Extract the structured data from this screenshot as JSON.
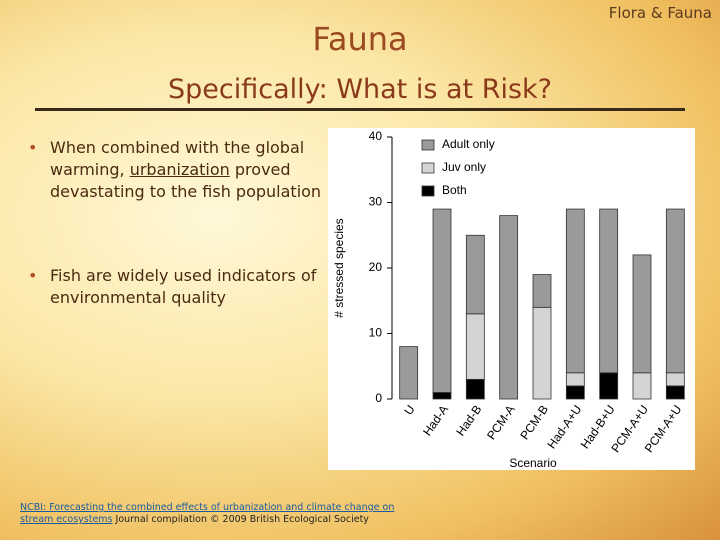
{
  "header": {
    "corner": "Flora & Fauna",
    "title": "Fauna",
    "subtitle": "Specifically: What is at Risk?"
  },
  "bullets": [
    {
      "before": "When combined with the global warming, ",
      "link": "urbanization",
      "after": " proved devastating to the fish population"
    },
    {
      "before": "Fish are widely used indicators of environmental quality"
    }
  ],
  "footer": {
    "link": "NCBI: Forecasting the combined effects of urbanization and climate change on stream ecosystems",
    "text": " Journal compilation © 2009 British Ecological Society"
  },
  "chart_data": {
    "type": "bar",
    "stacked": true,
    "y_label": "# stressed species",
    "x_label": "Scenario",
    "categories": [
      "U",
      "Had-A",
      "Had-B",
      "PCM-A",
      "PCM-B",
      "Had-A+U",
      "Had-B+U",
      "PCM-A+U",
      "PCM-A+U"
    ],
    "series": [
      {
        "name": "Adult only",
        "color": "#9a9a9a",
        "values": [
          8,
          28,
          12,
          28,
          5,
          25,
          25,
          18,
          25
        ]
      },
      {
        "name": "Juv only",
        "color": "#d4d4d4",
        "values": [
          0,
          0,
          10,
          0,
          14,
          2,
          0,
          4,
          2
        ]
      },
      {
        "name": "Both",
        "color": "#000000",
        "values": [
          0,
          1,
          3,
          0,
          0,
          2,
          4,
          0,
          2
        ]
      }
    ],
    "ylim": [
      0,
      40
    ],
    "yticks": [
      0,
      10,
      20,
      30,
      40
    ],
    "legend": "top-left"
  }
}
